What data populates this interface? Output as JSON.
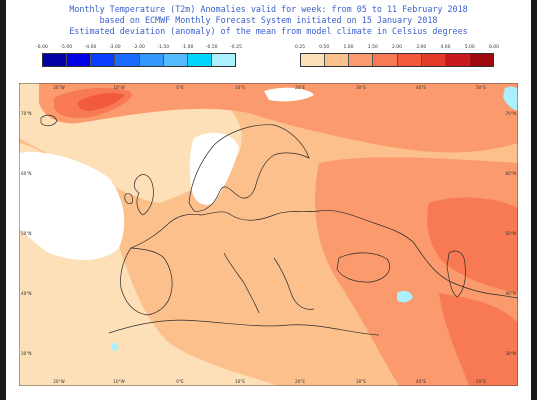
{
  "titles": {
    "line1": "Monthly Temperature (T2m) Anomalies valid for week: from 05 to 11 February 2018",
    "line2": "based on ECMWF Monthly Forecast System initiated on 15 January 2018",
    "line3": "Estimated deviation (anomaly) of the mean from model climate in Celsius degrees"
  },
  "legend": {
    "negative": {
      "labels": [
        "-6.00",
        "-5.00",
        "-4.00",
        "-3.00",
        "-2.00",
        "-1.50",
        "-1.00",
        "-0.50",
        "-0.25"
      ],
      "colors": [
        "#0000a8",
        "#0000e6",
        "#0a3dff",
        "#1b6bff",
        "#3399ff",
        "#55bbff",
        "#00d5ff",
        "#aaf0ff"
      ]
    },
    "positive": {
      "labels": [
        "0.25",
        "0.50",
        "1.00",
        "1.50",
        "2.00",
        "3.00",
        "4.00",
        "5.00",
        "6.00"
      ],
      "colors": [
        "#fde0b8",
        "#fcc08c",
        "#fb9a6d",
        "#f77a55",
        "#f25a3d",
        "#e33a2c",
        "#c81a1e",
        "#a00a0f"
      ]
    }
  },
  "map": {
    "lon_labels": [
      "20°W",
      "10°W",
      "0°E",
      "10°E",
      "20°E",
      "30°E",
      "40°E",
      "50°E"
    ],
    "lat_labels": [
      "70°N",
      "60°N",
      "50°N",
      "40°N",
      "30°N"
    ],
    "colors": {
      "land_outline": "#2b2b2b",
      "neutral": "#ffffff",
      "a1": "#fde0b8",
      "a2": "#fcc08c",
      "a3": "#fb9a6d",
      "a4": "#f77a55",
      "a5": "#f25a3d",
      "a6": "#e33a2c",
      "cold": "#aaf0ff"
    }
  }
}
